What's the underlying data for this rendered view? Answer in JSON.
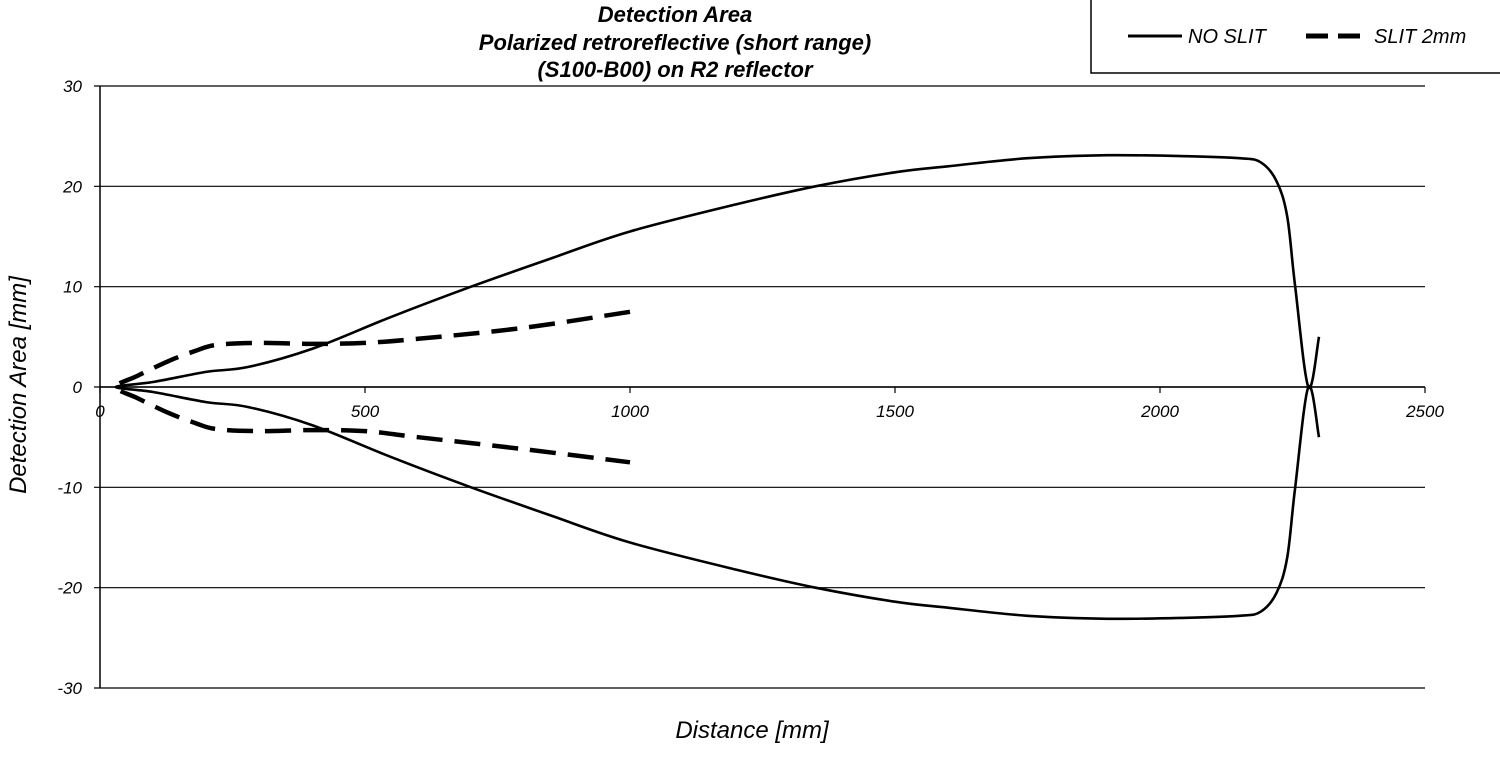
{
  "chart_data": {
    "type": "line",
    "title": [
      "Detection Area",
      "Polarized  retroreflective (short range)",
      "(S100-B00) on R2 reflector"
    ],
    "xlabel": "Distance [mm]",
    "ylabel": "Detection Area [mm]",
    "xlim": [
      0,
      2500
    ],
    "ylim": [
      -30,
      30
    ],
    "x_ticks": [
      "0",
      "500",
      "1000",
      "1500",
      "2000",
      "2500"
    ],
    "y_ticks": [
      "30",
      "20",
      "10",
      "0",
      "-10",
      "-20",
      "-30"
    ],
    "grid": "horizontal",
    "legend": {
      "position": "top-right"
    },
    "series": [
      {
        "name": "NO SLIT",
        "style": "solid",
        "color": "#000000",
        "points": [
          [
            2300,
            5
          ],
          [
            2280,
            0
          ],
          [
            2255,
            10
          ],
          [
            2240,
            17
          ],
          [
            2220,
            20.5
          ],
          [
            2190,
            22.4
          ],
          [
            2150,
            22.8
          ],
          [
            2050,
            23
          ],
          [
            1900,
            23.1
          ],
          [
            1750,
            22.8
          ],
          [
            1600,
            22
          ],
          [
            1500,
            21.4
          ],
          [
            1350,
            20
          ],
          [
            1200,
            18.2
          ],
          [
            1000,
            15.5
          ],
          [
            850,
            12.8
          ],
          [
            700,
            10
          ],
          [
            550,
            7
          ],
          [
            400,
            3.8
          ],
          [
            280,
            2
          ],
          [
            200,
            1.5
          ],
          [
            100,
            0.5
          ],
          [
            30,
            0
          ],
          [
            100,
            -0.5
          ],
          [
            200,
            -1.5
          ],
          [
            280,
            -2
          ],
          [
            400,
            -3.8
          ],
          [
            550,
            -7
          ],
          [
            700,
            -10
          ],
          [
            850,
            -12.8
          ],
          [
            1000,
            -15.5
          ],
          [
            1200,
            -18.2
          ],
          [
            1350,
            -20
          ],
          [
            1500,
            -21.4
          ],
          [
            1600,
            -22
          ],
          [
            1750,
            -22.8
          ],
          [
            1900,
            -23.1
          ],
          [
            2050,
            -23
          ],
          [
            2150,
            -22.8
          ],
          [
            2190,
            -22.4
          ],
          [
            2220,
            -20.5
          ],
          [
            2240,
            -17
          ],
          [
            2255,
            -10
          ],
          [
            2280,
            0
          ],
          [
            2300,
            -5
          ]
        ]
      },
      {
        "name": "SLIT 2mm",
        "style": "dashed",
        "color": "#000000",
        "points": [
          [
            1000,
            7.5
          ],
          [
            800,
            5.9
          ],
          [
            600,
            4.8
          ],
          [
            500,
            4.4
          ],
          [
            400,
            4.3
          ],
          [
            300,
            4.4
          ],
          [
            220,
            4.2
          ],
          [
            180,
            3.6
          ],
          [
            130,
            2.6
          ],
          [
            70,
            1.1
          ],
          [
            30,
            0
          ],
          [
            70,
            -1.1
          ],
          [
            130,
            -2.6
          ],
          [
            180,
            -3.6
          ],
          [
            220,
            -4.2
          ],
          [
            300,
            -4.4
          ],
          [
            400,
            -4.3
          ],
          [
            500,
            -4.4
          ],
          [
            600,
            -5
          ],
          [
            800,
            -6.2
          ],
          [
            1000,
            -7.5
          ]
        ]
      }
    ]
  }
}
